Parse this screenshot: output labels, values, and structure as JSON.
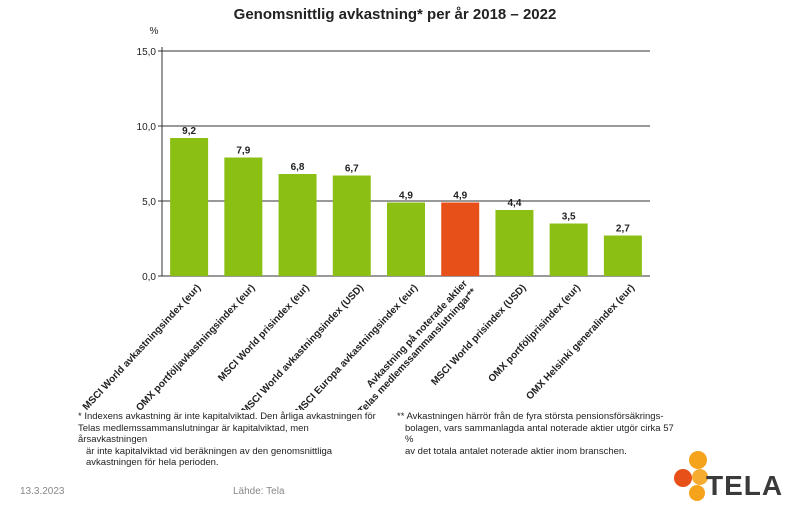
{
  "chart_data": {
    "type": "bar",
    "title": "Genomsnittlig avkastning* per år 2018 – 2022",
    "ylabel": "%",
    "ylim": [
      0,
      15
    ],
    "yticks": [
      "0,0",
      "5,0",
      "10,0",
      "15,0"
    ],
    "ytick_values": [
      0,
      5,
      10,
      15
    ],
    "categories": [
      "MSCI World avkastningsindex (eur)",
      "OMX portföljavkastningsindex (eur)",
      "MSCI World prisindex (eur)",
      "MSCI World avkastningsindex (USD)",
      "MSCI Europa avkastningsindex (eur)",
      "Avkastning på noterade aktier i Telas medlemssammanslutningar**",
      "MSCI World prisindex (USD)",
      "OMX portföljprisindex (eur)",
      "OMX  Helsinki generalindex (eur)"
    ],
    "values": [
      9.2,
      7.9,
      6.8,
      6.7,
      4.9,
      4.9,
      4.4,
      3.5,
      2.7
    ],
    "value_labels": [
      "9,2",
      "7,9",
      "6,8",
      "6,7",
      "4,9",
      "4,9",
      "4,4",
      "3,5",
      "2,7"
    ],
    "bar_colors": [
      "#8cbf14",
      "#8cbf14",
      "#8cbf14",
      "#8cbf14",
      "#8cbf14",
      "#e8501a",
      "#8cbf14",
      "#8cbf14",
      "#8cbf14"
    ],
    "grid": true
  },
  "notes": {
    "note1": [
      "* Indexens avkastning är inte kapitalviktad. Den årliga avkastningen för",
      "Telas medlemssammanslutningar är kapitalviktad, men årsavkastningen",
      "är inte kapitalviktad vid beräkningen av den genomsnittliga",
      "avkastningen för hela perioden."
    ],
    "note2": [
      "** Avkastningen härrör från de fyra största pensionsförsäkrings-",
      "bolagen, vars sammanlagda antal noterade aktier utgör cirka 57 %",
      "av det totala antalet noterade aktier inom branschen."
    ]
  },
  "footer": {
    "date": "13.3.2023",
    "source": "Lähde: Tela"
  },
  "logo": {
    "text": "TELA",
    "colors": [
      "#f5a31a",
      "#e8501a"
    ]
  }
}
